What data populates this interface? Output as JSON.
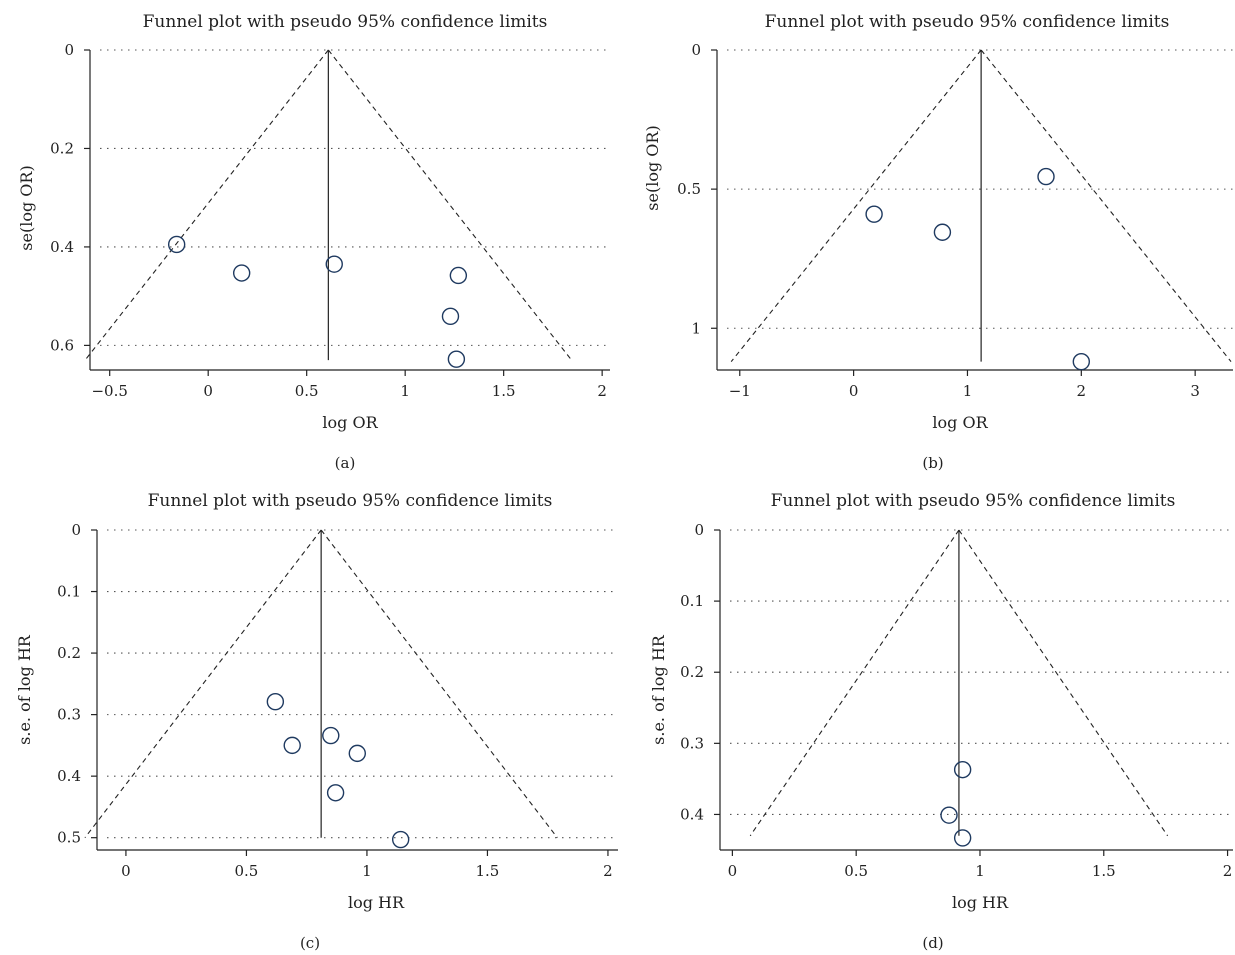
{
  "chart_data": [
    {
      "type": "scatter",
      "panel_label": "(a)",
      "title": "Funnel plot with pseudo 95% confidence limits",
      "xlabel": "log OR",
      "ylabel": "se(log OR)",
      "xlim": [
        -0.6,
        2.05
      ],
      "ylim": [
        0,
        0.65
      ],
      "y_inverted": true,
      "xticks": [
        -0.5,
        0,
        0.5,
        1,
        1.5,
        2
      ],
      "xtick_labels": [
        "−0.5",
        "0",
        "0.5",
        "1",
        "1.5",
        "2"
      ],
      "yticks": [
        0,
        0.2,
        0.4,
        0.6
      ],
      "ytick_labels": [
        "0",
        "0.2",
        "0.4",
        "0.6"
      ],
      "grid": "horizontal dotted",
      "pooled_estimate": 0.61,
      "ci_max_se": 0.63,
      "points": [
        {
          "x": -0.16,
          "y": 0.395
        },
        {
          "x": 0.17,
          "y": 0.453
        },
        {
          "x": 0.64,
          "y": 0.435
        },
        {
          "x": 1.27,
          "y": 0.458
        },
        {
          "x": 1.23,
          "y": 0.541
        },
        {
          "x": 1.26,
          "y": 0.628
        }
      ]
    },
    {
      "type": "scatter",
      "panel_label": "(b)",
      "title": "Funnel plot with pseudo 95% confidence limits",
      "xlabel": "log OR",
      "ylabel": "se(log OR)",
      "xlim": [
        -1.2,
        3.35
      ],
      "ylim": [
        0,
        1.15
      ],
      "y_inverted": true,
      "xticks": [
        -1,
        0,
        1,
        2,
        3
      ],
      "xtick_labels": [
        "−1",
        "0",
        "1",
        "2",
        "3"
      ],
      "yticks": [
        0,
        0.5,
        1
      ],
      "ytick_labels": [
        "0",
        "0.5",
        "1"
      ],
      "grid": "horizontal dotted",
      "pooled_estimate": 1.12,
      "ci_max_se": 1.12,
      "points": [
        {
          "x": 0.18,
          "y": 0.59
        },
        {
          "x": 0.78,
          "y": 0.655
        },
        {
          "x": 1.69,
          "y": 0.455
        },
        {
          "x": 2.0,
          "y": 1.12
        }
      ]
    },
    {
      "type": "scatter",
      "panel_label": "(c)",
      "title": "Funnel plot with pseudo 95% confidence limits",
      "xlabel": "log HR",
      "ylabel": "s.e. of log HR",
      "xlim": [
        -0.12,
        2.05
      ],
      "ylim": [
        0,
        0.52
      ],
      "y_inverted": true,
      "xticks": [
        0,
        0.5,
        1,
        1.5,
        2
      ],
      "xtick_labels": [
        "0",
        "0.5",
        "1",
        "1.5",
        "2"
      ],
      "yticks": [
        0,
        0.1,
        0.2,
        0.3,
        0.4,
        0.5
      ],
      "ytick_labels": [
        "0",
        "0.1",
        "0.2",
        "0.3",
        "0.4",
        "0.5"
      ],
      "grid": "horizontal dotted",
      "pooled_estimate": 0.81,
      "ci_max_se": 0.5,
      "points": [
        {
          "x": 0.62,
          "y": 0.279
        },
        {
          "x": 0.69,
          "y": 0.35
        },
        {
          "x": 0.85,
          "y": 0.334
        },
        {
          "x": 0.96,
          "y": 0.363
        },
        {
          "x": 0.87,
          "y": 0.427
        },
        {
          "x": 1.14,
          "y": 0.503
        }
      ]
    },
    {
      "type": "scatter",
      "panel_label": "(d)",
      "title": "Funnel plot with pseudo 95% confidence limits",
      "xlabel": "log HR",
      "ylabel": "s.e. of log HR",
      "xlim": [
        -0.05,
        2.03
      ],
      "ylim": [
        0,
        0.45
      ],
      "y_inverted": true,
      "xticks": [
        0,
        0.5,
        1,
        1.5,
        2
      ],
      "xtick_labels": [
        "0",
        "0.5",
        "1",
        "1.5",
        "2"
      ],
      "yticks": [
        0,
        0.1,
        0.2,
        0.3,
        0.4
      ],
      "ytick_labels": [
        "0",
        "0.1",
        "0.2",
        "0.3",
        "0.4"
      ],
      "grid": "horizontal dotted",
      "pooled_estimate": 0.915,
      "ci_max_se": 0.43,
      "points": [
        {
          "x": 0.93,
          "y": 0.337
        },
        {
          "x": 0.875,
          "y": 0.401
        },
        {
          "x": 0.93,
          "y": 0.433
        }
      ]
    }
  ]
}
